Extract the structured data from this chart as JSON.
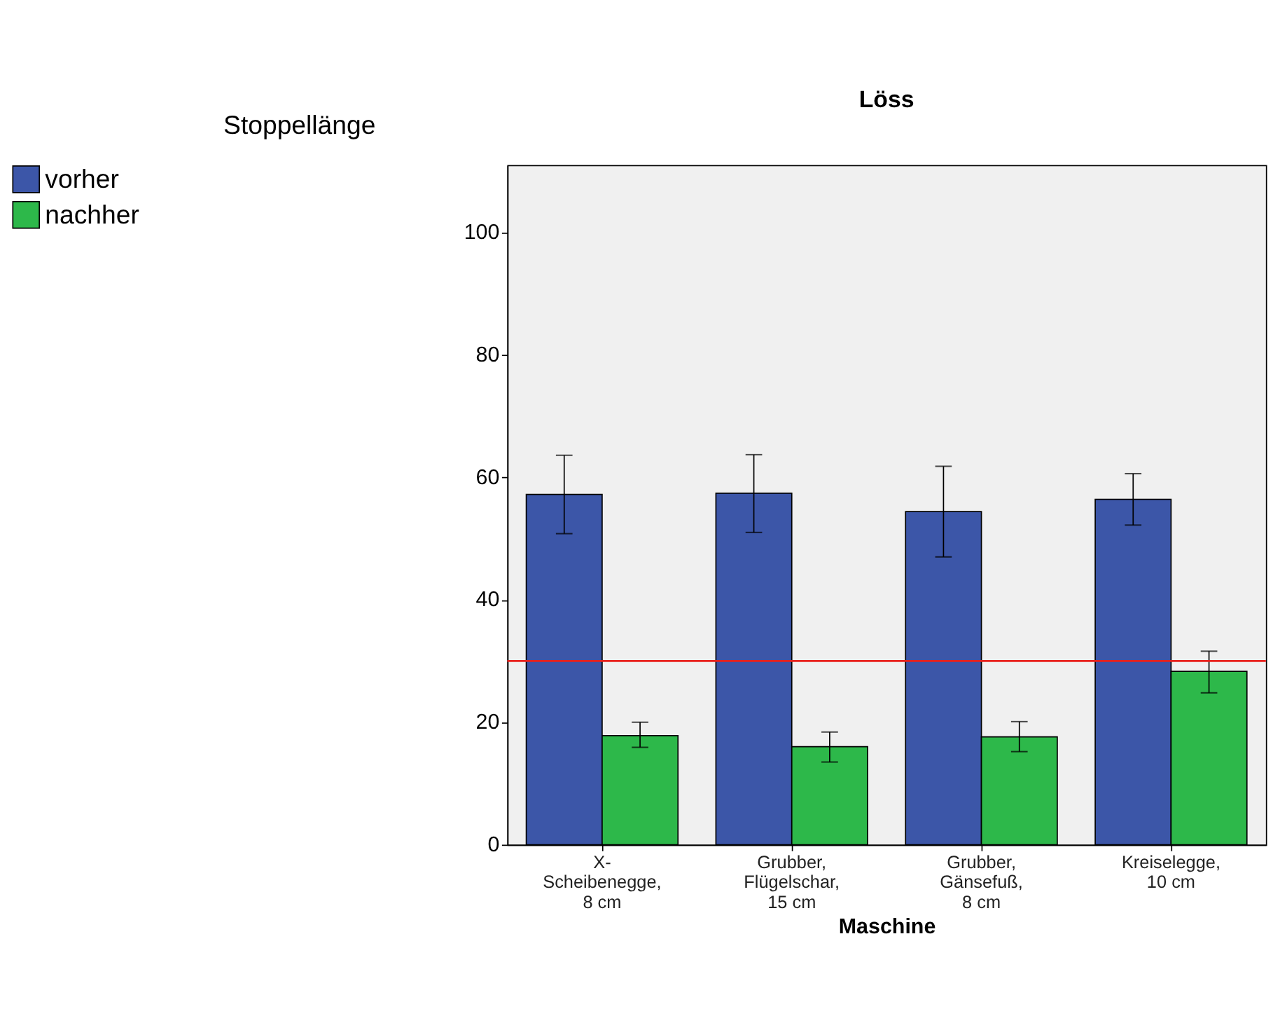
{
  "chart_data": {
    "type": "bar",
    "title": "Löss",
    "xlabel": "Maschine",
    "ylabel": "Stoppellänge",
    "categories": [
      "X-\nScheibenegge,\n8 cm",
      "Grubber,\nFlügelschar,\n15 cm",
      "Grubber,\nGänsefuß,\n8 cm",
      "Kreiselegge,\n10 cm"
    ],
    "series": [
      {
        "name": "vorher",
        "color": "#3c56a8",
        "values": [
          57.2,
          57.4,
          54.4,
          56.4
        ],
        "errors": [
          [
            50.8,
            63.6
          ],
          [
            51.0,
            63.7
          ],
          [
            47.0,
            61.8
          ],
          [
            52.2,
            60.6
          ]
        ]
      },
      {
        "name": "nachher",
        "color": "#2db84a",
        "values": [
          17.8,
          16.0,
          17.6,
          28.3
        ],
        "errors": [
          [
            15.9,
            20.0
          ],
          [
            13.5,
            18.4
          ],
          [
            15.2,
            20.1
          ],
          [
            24.8,
            31.6
          ]
        ]
      }
    ],
    "ylim": [
      0,
      111
    ],
    "yticks": [
      0,
      20,
      40,
      60,
      80,
      100
    ],
    "grid": false,
    "legend": "top left",
    "ref_lines": [
      {
        "axis": "y",
        "value": 30,
        "color": "#e8201c"
      }
    ]
  }
}
